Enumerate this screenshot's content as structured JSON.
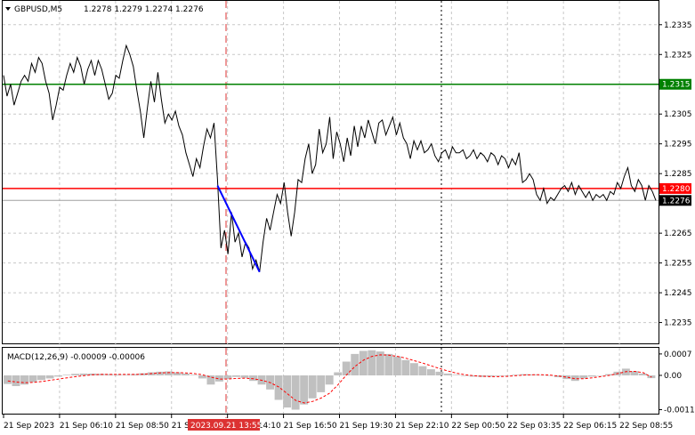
{
  "header": {
    "symbol_timeframe": "GBPUSD,M5",
    "ohlc": "1.2278 1.2279 1.2274 1.2276"
  },
  "colors": {
    "price_line": "#000000",
    "support_line": "#ff0000",
    "resistance_line": "#008000",
    "trend_segment": "#0000ff",
    "macd_histogram": "#c0c0c0",
    "macd_signal": "#ff0000",
    "grid": "#c8c8c8",
    "cursor_line": "#dc3232"
  },
  "chart_data": [
    {
      "type": "line",
      "xlabel": "",
      "ylabel": "",
      "ylim": [
        1.2228,
        1.2343
      ],
      "yticks": [
        "1.2335",
        "1.2325",
        "1.2305",
        "1.2295",
        "1.2285",
        "1.2265",
        "1.2255",
        "1.2245",
        "1.2235"
      ],
      "xtick_labels": [
        "21 Sep 2023",
        "21 Sep 06:10",
        "21 Sep 08:50",
        "21 Sep 11:30",
        "21 Sep 14:10",
        "21 Sep 16:50",
        "21 Sep 19:30",
        "21 Sep 22:10",
        "22 Sep 00:50",
        "22 Sep 03:35",
        "22 Sep 06:15",
        "22 Sep 08:55"
      ],
      "cursor_time_label": "2023.09.21 13:55",
      "price_series": [
        1.2318,
        1.2311,
        1.2315,
        1.2308,
        1.2312,
        1.2316,
        1.2318,
        1.2316,
        1.2322,
        1.2319,
        1.2324,
        1.2322,
        1.2316,
        1.2312,
        1.2303,
        1.2308,
        1.2314,
        1.2313,
        1.2318,
        1.2322,
        1.2319,
        1.2324,
        1.2321,
        1.2315,
        1.232,
        1.2323,
        1.2318,
        1.2323,
        1.232,
        1.2315,
        1.231,
        1.2312,
        1.2318,
        1.2317,
        1.2323,
        1.2328,
        1.2325,
        1.2321,
        1.2313,
        1.2306,
        1.2297,
        1.2307,
        1.2316,
        1.2309,
        1.2319,
        1.231,
        1.2302,
        1.2305,
        1.2303,
        1.2306,
        1.2301,
        1.2298,
        1.2292,
        1.2288,
        1.2284,
        1.229,
        1.2287,
        1.2294,
        1.23,
        1.2297,
        1.2302,
        1.2283,
        1.226,
        1.2266,
        1.2258,
        1.2272,
        1.2262,
        1.2265,
        1.2257,
        1.2262,
        1.226,
        1.2253,
        1.2256,
        1.2252,
        1.2262,
        1.227,
        1.2266,
        1.2272,
        1.2278,
        1.2275,
        1.2282,
        1.2272,
        1.2264,
        1.2272,
        1.2283,
        1.2282,
        1.229,
        1.2295,
        1.2285,
        1.2288,
        1.23,
        1.2292,
        1.2295,
        1.2304,
        1.229,
        1.2299,
        1.2295,
        1.2289,
        1.2297,
        1.2291,
        1.2301,
        1.2294,
        1.2301,
        1.2297,
        1.2303,
        1.2299,
        1.2295,
        1.2302,
        1.2303,
        1.2298,
        1.2301,
        1.2304,
        1.2298,
        1.2302,
        1.2297,
        1.2295,
        1.229,
        1.2296,
        1.2293,
        1.2296,
        1.2292,
        1.2293,
        1.2295,
        1.2291,
        1.2289,
        1.2292,
        1.2293,
        1.229,
        1.2294,
        1.2292,
        1.2292,
        1.2293,
        1.229,
        1.2291,
        1.2293,
        1.229,
        1.2292,
        1.2291,
        1.2289,
        1.2292,
        1.2291,
        1.2288,
        1.2291,
        1.229,
        1.2287,
        1.229,
        1.2288,
        1.2292,
        1.2282,
        1.2283,
        1.2285,
        1.2283,
        1.2278,
        1.2276,
        1.228,
        1.2275,
        1.2277,
        1.2276,
        1.2278,
        1.228,
        1.2281,
        1.2279,
        1.2282,
        1.2278,
        1.2281,
        1.2279,
        1.2277,
        1.2279,
        1.2276,
        1.2278,
        1.2277,
        1.2278,
        1.2276,
        1.2279,
        1.2278,
        1.2282,
        1.228,
        1.2284,
        1.2287,
        1.2281,
        1.2279,
        1.2283,
        1.2281,
        1.2276,
        1.2281,
        1.2279,
        1.2276
      ],
      "levels": [
        {
          "label": "1.2315",
          "value": 1.2315,
          "role": "resistance"
        },
        {
          "label": "1.2280",
          "value": 1.228,
          "role": "support"
        },
        {
          "label": "1.2276",
          "value": 1.2276,
          "role": "current_price"
        }
      ],
      "trend_segment": {
        "from_index": 61,
        "to_index": 73,
        "from_value": 1.2281,
        "to_value": 1.2252
      },
      "grid": true
    },
    {
      "type": "bar",
      "title": "MACD(12,26,9) -0.00009 -0.00006",
      "ylim": [
        -0.00125,
        0.0009
      ],
      "yticks": [
        "0.0007",
        "0.00",
        "-0.00112"
      ],
      "histogram": [
        -0.00028,
        -0.00035,
        -0.0003,
        -0.00022,
        -0.00015,
        -0.0001,
        -4e-05,
        2e-05,
        5e-05,
        6e-05,
        6e-05,
        5e-05,
        4e-05,
        3e-05,
        2e-05,
        4e-05,
        7e-05,
        0.0001,
        0.00012,
        0.00013,
        0.0001,
        6e-05,
        2e-05,
        -0.0001,
        -0.0003,
        -0.0002,
        -0.00012,
        -5e-05,
        -8e-05,
        -0.00018,
        -0.0003,
        -0.00046,
        -0.0008,
        -0.00105,
        -0.00112,
        -0.00095,
        -0.00075,
        -0.00055,
        -0.0003,
        0.0001,
        0.00045,
        0.0007,
        0.0008,
        0.00082,
        0.00078,
        0.0007,
        0.00062,
        0.0005,
        0.0004,
        0.0003,
        0.0002,
        0.00012,
        6e-05,
        2e-05,
        -2e-05,
        -4e-05,
        -5e-05,
        -4e-05,
        -2e-05,
        0.0,
        2e-05,
        4e-05,
        3e-05,
        1e-05,
        -1e-05,
        -6e-05,
        -0.00012,
        -0.00018,
        -0.0001,
        -4e-05,
        0.0,
        4e-05,
        0.00012,
        0.00022,
        0.00014,
        6e-05,
        -9e-05
      ],
      "signal": [
        -0.00018,
        -0.00022,
        -0.00024,
        -0.00023,
        -0.0002,
        -0.00016,
        -0.00012,
        -8e-05,
        -4e-05,
        -1e-05,
        2e-05,
        3e-05,
        3e-05,
        3e-05,
        3e-05,
        3e-05,
        4e-05,
        6e-05,
        8e-05,
        9e-05,
        9e-05,
        8e-05,
        6e-05,
        2e-05,
        -6e-05,
        -0.00012,
        -0.00012,
        -0.0001,
        -9e-05,
        -0.00011,
        -0.00016,
        -0.00024,
        -0.00038,
        -0.0006,
        -0.00082,
        -0.0009,
        -0.00085,
        -0.00074,
        -0.00058,
        -0.0003,
        2e-05,
        0.0003,
        0.0005,
        0.00062,
        0.00067,
        0.00066,
        0.00062,
        0.00056,
        0.00048,
        0.0004,
        0.00031,
        0.00022,
        0.00014,
        7e-05,
        2e-05,
        -1e-05,
        -3e-05,
        -4e-05,
        -4e-05,
        -3e-05,
        -1e-05,
        1e-05,
        2e-05,
        2e-05,
        1e-05,
        -2e-05,
        -6e-05,
        -0.00011,
        -0.00011,
        -8e-05,
        -4e-05,
        0.0,
        6e-05,
        0.00012,
        0.00013,
        9e-05,
        -6e-05
      ]
    }
  ]
}
